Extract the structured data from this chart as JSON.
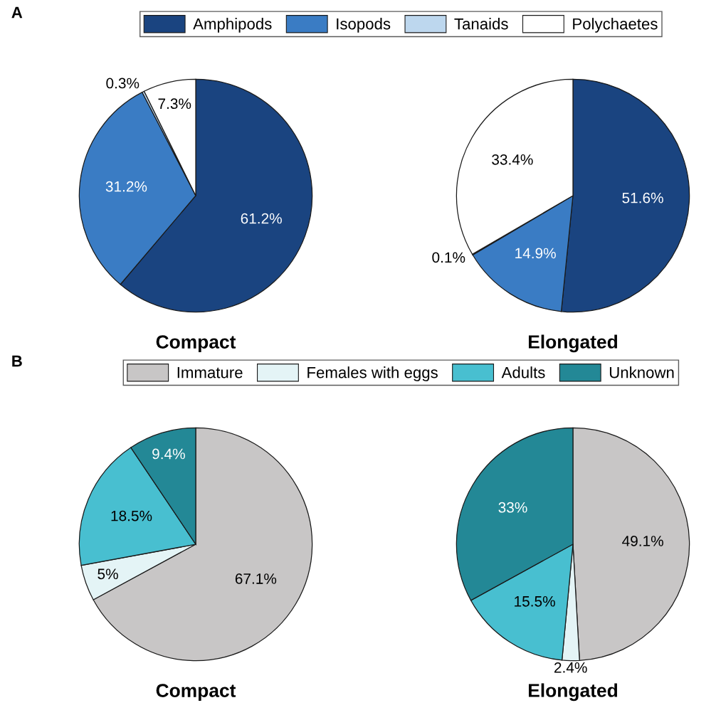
{
  "chart_data": [
    {
      "type": "pie",
      "xlabel": "Compact",
      "annotations": [
        "A"
      ],
      "legend": "top",
      "categories": [
        "Amphipods",
        "Isopods",
        "Tanaids",
        "Polychaetes"
      ],
      "values": [
        61.2,
        31.2,
        0.3,
        7.3
      ],
      "colors": [
        "#1a4480",
        "#3a7cc4",
        "#bdd7ee",
        "#ffffff"
      ],
      "value_labels": [
        "61.2%",
        "31.2%",
        "0.3%",
        "7.3%"
      ]
    },
    {
      "type": "pie",
      "xlabel": "Elongated",
      "categories": [
        null,
        null,
        null,
        null
      ],
      "values": [
        51.6,
        14.9,
        0.1,
        33.4
      ],
      "colors": [
        "#1a4480",
        "#3a7cc4",
        "#bdd7ee",
        "#ffffff"
      ],
      "value_labels": [
        "51.6%",
        "14.9%",
        "0.1%",
        "33.4%"
      ]
    },
    {
      "type": "pie",
      "xlabel": "Compact",
      "annotations": [
        "B"
      ],
      "legend": "top",
      "categories": [
        "Immature",
        "Females with eggs",
        "Adults",
        "Unknown"
      ],
      "values": [
        67.1,
        5,
        18.5,
        9.4
      ],
      "colors": [
        "#c8c6c6",
        "#e4f4f6",
        "#48bfd0",
        "#238896"
      ],
      "value_labels": [
        "67.1%",
        "5%",
        "18.5%",
        "9.4%"
      ]
    },
    {
      "type": "pie",
      "xlabel": "Elongated",
      "categories": [
        null,
        null,
        null,
        null
      ],
      "values": [
        49.1,
        2.4,
        15.5,
        33
      ],
      "colors": [
        "#c8c6c6",
        "#e4f4f6",
        "#48bfd0",
        "#238896"
      ],
      "value_labels": [
        "49.1%",
        "2.4%",
        "15.5%",
        "33%"
      ]
    }
  ]
}
